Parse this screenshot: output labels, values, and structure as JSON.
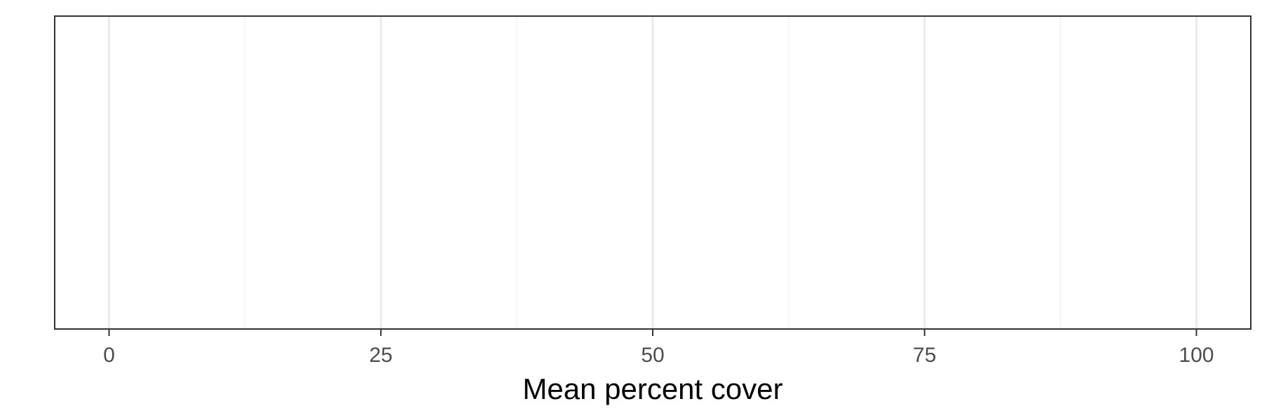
{
  "chart_data": {
    "type": "bar",
    "title": "",
    "xlabel": "Mean percent cover",
    "ylabel": "",
    "xlim": [
      -5,
      105
    ],
    "x_major_ticks": [
      0,
      25,
      50,
      75,
      100
    ],
    "x_minor_ticks": [
      12.5,
      37.5,
      62.5,
      87.5
    ],
    "x_tick_labels": [
      "0",
      "25",
      "50",
      "75",
      "100"
    ],
    "categories": [],
    "values": [],
    "grid": "vertical",
    "legend": "none",
    "colors": {
      "panel_border": "#333333",
      "grid_major": "#ebebeb",
      "grid_minor": "#f2f2f2",
      "tick_text": "#4d4d4d",
      "axis_title": "#000000",
      "background": "#ffffff"
    }
  }
}
